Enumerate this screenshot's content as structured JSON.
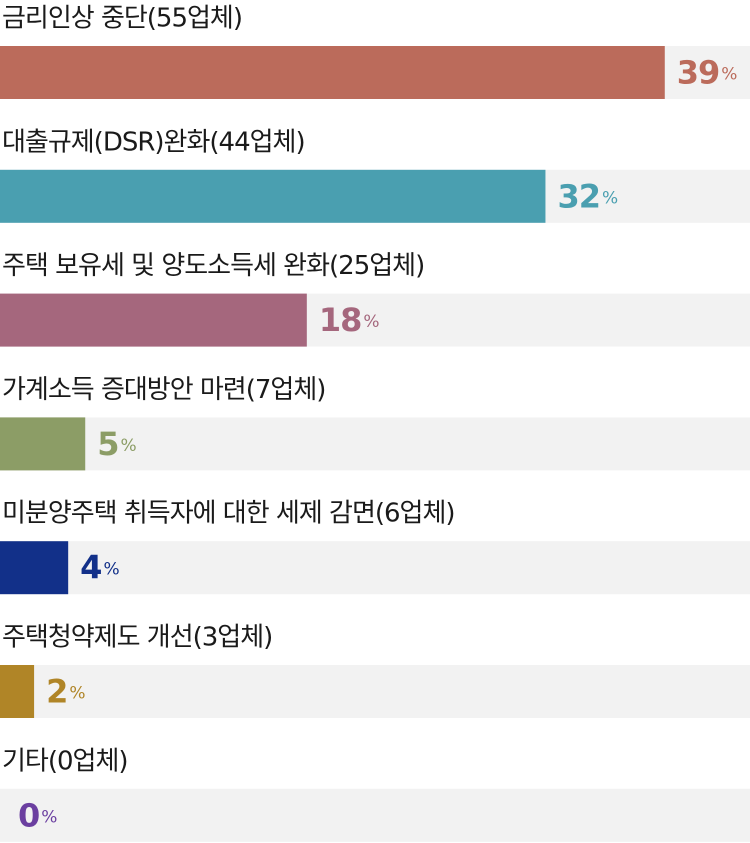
{
  "chart_data": {
    "type": "bar",
    "orientation": "horizontal",
    "categories": [
      "금리인상 중단(55업체)",
      "대출규제(DSR)완화(44업체)",
      "주택 보유세 및 양도소득세 완화(25업체)",
      "가계소득 증대방안 마련(7업체)",
      "미분양주택 취득자에 대한 세제 감면(6업체)",
      "주택청약제도 개선(3업체)",
      "기타(0업체)"
    ],
    "values": [
      39,
      32,
      18,
      5,
      4,
      2,
      0
    ],
    "value_labels": [
      "39%",
      "32%",
      "18%",
      "5%",
      "4%",
      "2%",
      "0%"
    ],
    "colors": [
      "#bb6b5b",
      "#4a9fb0",
      "#a5677d",
      "#8c9d66",
      "#123089",
      "#b08527",
      "#6b3fa0"
    ],
    "track_color": "#f2f2f2",
    "xlim": [
      0,
      44
    ]
  }
}
